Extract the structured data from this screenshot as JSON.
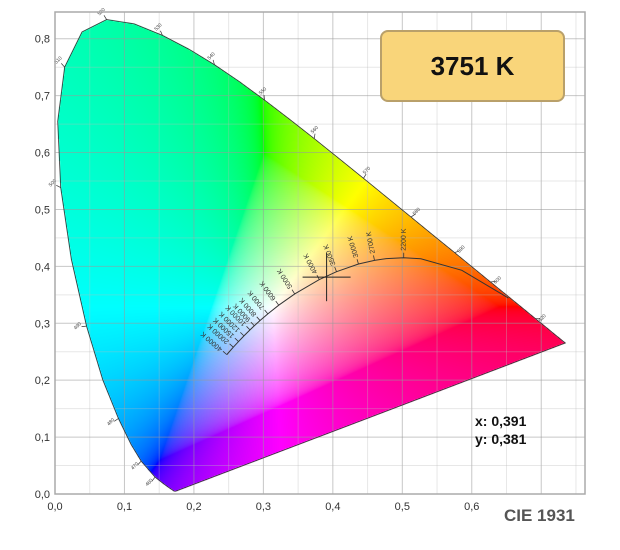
{
  "cct_badge": "3751 K",
  "readout": {
    "x": "x: 0,391",
    "y": "y: 0,381"
  },
  "diagram_label": "CIE 1931",
  "chart_data": {
    "type": "scatter",
    "title": "",
    "xlim": [
      0,
      0.763
    ],
    "ylim": [
      0,
      0.847
    ],
    "grid": true,
    "x_ticks": [
      {
        "v": 0,
        "label": "0,0"
      },
      {
        "v": 0.1,
        "label": "0,1"
      },
      {
        "v": 0.2,
        "label": "0,2"
      },
      {
        "v": 0.3,
        "label": "0,3"
      },
      {
        "v": 0.4,
        "label": "0,4"
      },
      {
        "v": 0.5,
        "label": "0,5"
      },
      {
        "v": 0.6,
        "label": "0,6"
      }
    ],
    "y_ticks": [
      {
        "v": 0,
        "label": "0,0"
      },
      {
        "v": 0.1,
        "label": "0,1"
      },
      {
        "v": 0.2,
        "label": "0,2"
      },
      {
        "v": 0.3,
        "label": "0,3"
      },
      {
        "v": 0.4,
        "label": "0,4"
      },
      {
        "v": 0.5,
        "label": "0,5"
      },
      {
        "v": 0.6,
        "label": "0,6"
      },
      {
        "v": 0.7,
        "label": "0,7"
      },
      {
        "v": 0.8,
        "label": "0,8"
      }
    ],
    "spectral_locus": [
      {
        "nm": 380,
        "x": 0.1741,
        "y": 0.005
      },
      {
        "nm": 400,
        "x": 0.1733,
        "y": 0.0048
      },
      {
        "nm": 420,
        "x": 0.1714,
        "y": 0.0051
      },
      {
        "nm": 440,
        "x": 0.1644,
        "y": 0.0109
      },
      {
        "nm": 450,
        "x": 0.1566,
        "y": 0.0177
      },
      {
        "nm": 460,
        "x": 0.144,
        "y": 0.0297
      },
      {
        "nm": 470,
        "x": 0.1241,
        "y": 0.0578
      },
      {
        "nm": 475,
        "x": 0.1096,
        "y": 0.0868
      },
      {
        "nm": 480,
        "x": 0.0913,
        "y": 0.1327
      },
      {
        "nm": 485,
        "x": 0.0687,
        "y": 0.2007
      },
      {
        "nm": 490,
        "x": 0.0454,
        "y": 0.295
      },
      {
        "nm": 495,
        "x": 0.0235,
        "y": 0.4127
      },
      {
        "nm": 500,
        "x": 0.0082,
        "y": 0.5384
      },
      {
        "nm": 505,
        "x": 0.0039,
        "y": 0.6548
      },
      {
        "nm": 510,
        "x": 0.0139,
        "y": 0.7502
      },
      {
        "nm": 515,
        "x": 0.0389,
        "y": 0.812
      },
      {
        "nm": 520,
        "x": 0.0743,
        "y": 0.8338
      },
      {
        "nm": 525,
        "x": 0.1142,
        "y": 0.8262
      },
      {
        "nm": 530,
        "x": 0.1547,
        "y": 0.8059
      },
      {
        "nm": 535,
        "x": 0.1929,
        "y": 0.7816
      },
      {
        "nm": 540,
        "x": 0.2296,
        "y": 0.7543
      },
      {
        "nm": 545,
        "x": 0.2658,
        "y": 0.7243
      },
      {
        "nm": 550,
        "x": 0.3016,
        "y": 0.6923
      },
      {
        "nm": 555,
        "x": 0.3373,
        "y": 0.6589
      },
      {
        "nm": 560,
        "x": 0.3731,
        "y": 0.6245
      },
      {
        "nm": 565,
        "x": 0.4087,
        "y": 0.5896
      },
      {
        "nm": 570,
        "x": 0.4441,
        "y": 0.5547
      },
      {
        "nm": 575,
        "x": 0.4788,
        "y": 0.5202
      },
      {
        "nm": 580,
        "x": 0.5125,
        "y": 0.4866
      },
      {
        "nm": 585,
        "x": 0.5448,
        "y": 0.4544
      },
      {
        "nm": 590,
        "x": 0.5752,
        "y": 0.4242
      },
      {
        "nm": 595,
        "x": 0.6029,
        "y": 0.3965
      },
      {
        "nm": 600,
        "x": 0.627,
        "y": 0.3725
      },
      {
        "nm": 610,
        "x": 0.6658,
        "y": 0.334
      },
      {
        "nm": 620,
        "x": 0.6915,
        "y": 0.3083
      },
      {
        "nm": 630,
        "x": 0.7079,
        "y": 0.292
      },
      {
        "nm": 640,
        "x": 0.719,
        "y": 0.2809
      },
      {
        "nm": 700,
        "x": 0.7347,
        "y": 0.2653
      }
    ],
    "wavelength_labels": [
      460,
      470,
      480,
      490,
      500,
      510,
      520,
      530,
      540,
      550,
      560,
      570,
      580,
      590,
      600,
      620
    ],
    "planckian_locus": [
      {
        "K": 1000,
        "x": 0.6528,
        "y": 0.3444
      },
      {
        "K": 1500,
        "x": 0.5857,
        "y": 0.3931
      },
      {
        "K": 2000,
        "x": 0.5267,
        "y": 0.4133
      },
      {
        "K": 2200,
        "x": 0.502,
        "y": 0.4152,
        "label": "2200 K"
      },
      {
        "K": 2500,
        "x": 0.477,
        "y": 0.4137
      },
      {
        "K": 2700,
        "x": 0.4599,
        "y": 0.4106,
        "label": "2700 K"
      },
      {
        "K": 3000,
        "x": 0.4369,
        "y": 0.4041,
        "label": "3000 K"
      },
      {
        "K": 3500,
        "x": 0.4053,
        "y": 0.3907,
        "label": "3500 K"
      },
      {
        "K": 4000,
        "x": 0.3805,
        "y": 0.3768,
        "label": "4000 K"
      },
      {
        "K": 5000,
        "x": 0.3451,
        "y": 0.3516,
        "label": "5000 K"
      },
      {
        "K": 6000,
        "x": 0.3221,
        "y": 0.3318,
        "label": "6000 K"
      },
      {
        "K": 7000,
        "x": 0.3064,
        "y": 0.3166,
        "label": "7000 K"
      },
      {
        "K": 8000,
        "x": 0.2952,
        "y": 0.3048,
        "label": "8000 K"
      },
      {
        "K": 9000,
        "x": 0.2869,
        "y": 0.2956,
        "label": "9000 K"
      },
      {
        "K": 10000,
        "x": 0.2807,
        "y": 0.2884,
        "label": "10000 K"
      },
      {
        "K": 12000,
        "x": 0.272,
        "y": 0.2779,
        "label": "12000 K"
      },
      {
        "K": 15000,
        "x": 0.2642,
        "y": 0.2679,
        "label": "15000 K"
      },
      {
        "K": 20000,
        "x": 0.2567,
        "y": 0.258,
        "label": "20000 K"
      },
      {
        "K": 40000,
        "x": 0.2473,
        "y": 0.2449,
        "label": "40000 K"
      }
    ],
    "marker": {
      "x": 0.391,
      "y": 0.381,
      "cct": 3751
    }
  }
}
